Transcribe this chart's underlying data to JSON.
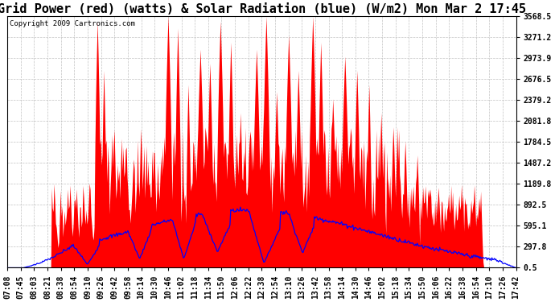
{
  "title": "Grid Power (red) (watts) & Solar Radiation (blue) (W/m2) Mon Mar 2 17:45",
  "copyright": "Copyright 2009 Cartronics.com",
  "yticks": [
    0.5,
    297.8,
    595.1,
    892.5,
    1189.8,
    1487.2,
    1784.5,
    2081.8,
    2379.2,
    2676.5,
    2973.9,
    3271.2,
    3568.5
  ],
  "ylim": [
    0.5,
    3568.5
  ],
  "xtick_labels": [
    "07:08",
    "07:45",
    "08:03",
    "08:21",
    "08:38",
    "08:54",
    "09:10",
    "09:26",
    "09:42",
    "09:58",
    "10:14",
    "10:30",
    "10:46",
    "11:02",
    "11:18",
    "11:34",
    "11:50",
    "12:06",
    "12:22",
    "12:38",
    "12:54",
    "13:10",
    "13:26",
    "13:42",
    "13:58",
    "14:14",
    "14:30",
    "14:46",
    "15:02",
    "15:18",
    "15:34",
    "15:50",
    "16:06",
    "16:22",
    "16:38",
    "16:54",
    "17:10",
    "17:26",
    "17:42"
  ],
  "background_color": "#ffffff",
  "plot_bg_color": "#ffffff",
  "grid_color": "#bbbbbb",
  "red_color": "#ff0000",
  "blue_color": "#0000ff",
  "title_fontsize": 11,
  "tick_fontsize": 7,
  "copyright_fontsize": 6.5,
  "figwidth": 6.9,
  "figheight": 3.75,
  "dpi": 100
}
